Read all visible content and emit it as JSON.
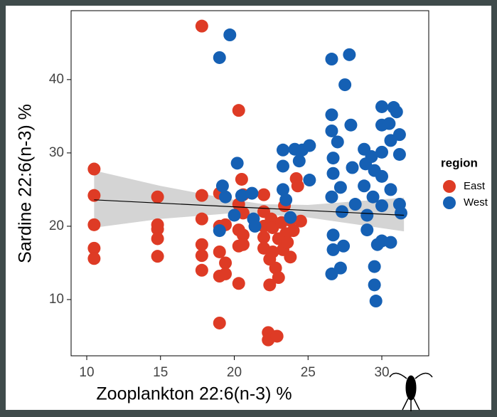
{
  "chart_data": {
    "type": "scatter",
    "x_label": "Zooplankton 22:6(n-3) %",
    "y_label": "Sardine 22:6(n-3) %",
    "legend_title": "region",
    "legend_position": "right",
    "xlim": [
      8.94,
      33.18
    ],
    "ylim": [
      2.33,
      49.4
    ],
    "xticks": [
      10,
      15,
      20,
      25,
      30
    ],
    "yticks": [
      10,
      20,
      30,
      40
    ],
    "grid": false,
    "fit": {
      "color": "#000000",
      "x": [
        10.5,
        31.5
      ],
      "y": [
        23.6,
        21.5
      ]
    },
    "band": {
      "color": "#cccccc",
      "x": [
        10.5,
        15,
        20,
        22,
        25,
        31.5
      ],
      "lower": [
        19.8,
        21,
        21.8,
        21.6,
        21.2,
        19.3
      ],
      "upper": [
        27.6,
        25.5,
        23.6,
        23.0,
        22.9,
        23.9
      ]
    },
    "series": [
      {
        "name": "East",
        "color": "#de3b25",
        "x": [
          10.5,
          10.5,
          10.5,
          10.5,
          10.5,
          14.8,
          14.8,
          14.8,
          14.8,
          14.8,
          17.8,
          17.8,
          17.8,
          17.8,
          17.8,
          17.8,
          19,
          19,
          19,
          19,
          19,
          19.4,
          19.4,
          19.4,
          20.3,
          20.3,
          20.3,
          20.3,
          20.3,
          20.5,
          20.6,
          20.6,
          20.6,
          20.6,
          22,
          22,
          22,
          22,
          22,
          22.3,
          22.3,
          22.4,
          22.4,
          22.5,
          22.6,
          22.6,
          22.8,
          22.9,
          23,
          23,
          23.2,
          23.3,
          23.4,
          23.5,
          23.6,
          23.8,
          24,
          24.2,
          24.3,
          24.5,
          23.8
        ],
        "values": [
          27.8,
          24.2,
          20.2,
          17,
          15.6,
          24,
          20.2,
          19.6,
          18.3,
          15.9,
          47.3,
          24.2,
          21,
          17.5,
          16,
          14,
          24.5,
          20,
          16.5,
          13.2,
          6.8,
          20.2,
          15,
          13.5,
          35.8,
          23,
          19.5,
          17.3,
          12.2,
          26.4,
          24.3,
          21.8,
          18.8,
          17.5,
          24.3,
          22,
          20,
          18.5,
          17,
          5.5,
          4.5,
          12,
          15.5,
          21,
          19.8,
          16.5,
          14.3,
          5,
          13,
          18.3,
          20.5,
          16.8,
          22.8,
          19,
          17.8,
          20.8,
          19.4,
          26.5,
          25.5,
          20.7,
          15.8
        ]
      },
      {
        "name": "West",
        "color": "#1560b4",
        "x": [
          19,
          19.7,
          19,
          19.2,
          19.4,
          20,
          20.2,
          20.5,
          21.2,
          21.3,
          21.4,
          23.3,
          23.3,
          23.3,
          23.5,
          23.8,
          24.1,
          24.4,
          24.6,
          25.1,
          25.1,
          26.6,
          26.6,
          26.6,
          26.7,
          26.7,
          26.6,
          26.7,
          26.7,
          26.6,
          27,
          27.2,
          27.3,
          27.2,
          27.4,
          27.5,
          27.8,
          27.9,
          28,
          28.2,
          28.8,
          28.9,
          28.8,
          29,
          29,
          29.3,
          29.5,
          29.4,
          29.5,
          29.5,
          29.6,
          29.7,
          30,
          30,
          30,
          30,
          30,
          30,
          30.5,
          30.8,
          30.6,
          30.6,
          30.6,
          31,
          31.2,
          31.2,
          31.2,
          31.3
        ],
        "values": [
          43,
          46.1,
          19.4,
          25.5,
          24,
          21.5,
          28.6,
          24.2,
          24.5,
          21,
          20,
          30.4,
          28.2,
          25,
          23.6,
          21.2,
          30.5,
          28.9,
          30.4,
          26.3,
          31,
          42.8,
          35.2,
          33,
          29.3,
          27.2,
          24,
          18.8,
          16.8,
          13.5,
          31.5,
          25.3,
          22,
          14.3,
          17.3,
          39.3,
          43.4,
          33.8,
          28,
          23,
          30.5,
          28.5,
          25.5,
          21.5,
          19.5,
          29.5,
          27.6,
          24,
          14.5,
          12,
          9.8,
          17.5,
          36.3,
          33.8,
          30.1,
          26.8,
          22.8,
          18,
          34,
          36.2,
          31.7,
          25,
          17.8,
          35.6,
          32.5,
          29.8,
          23,
          21.8
        ]
      }
    ]
  }
}
